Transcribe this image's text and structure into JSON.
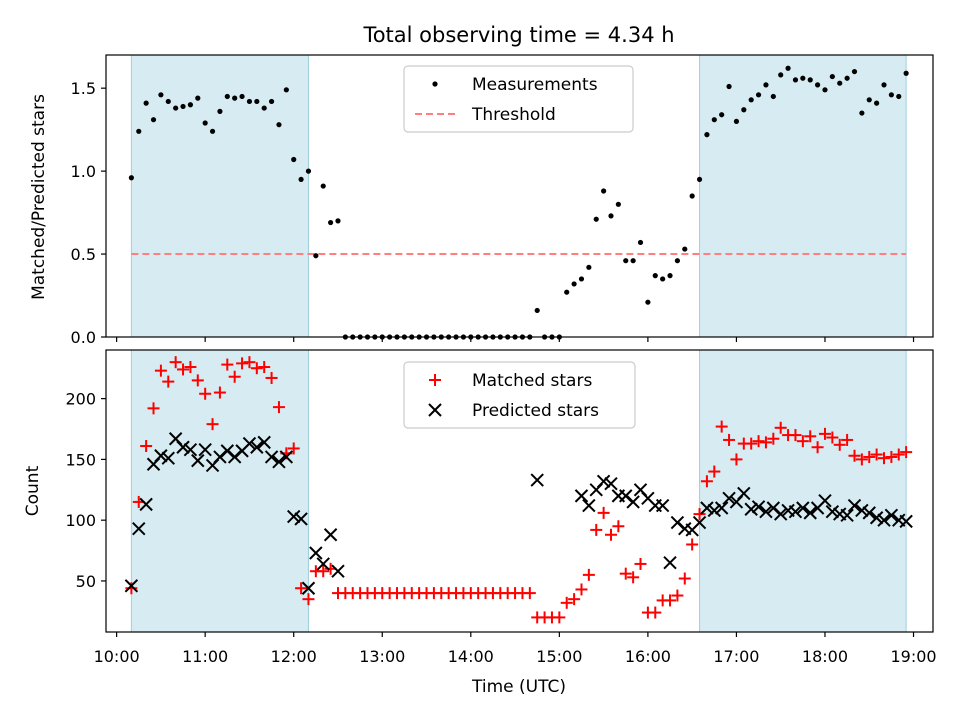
{
  "chart_data": [
    {
      "type": "scatter",
      "title": "Total observing time = 4.34 h",
      "xlabel": "",
      "ylabel": "Matched/Predicted stars",
      "xlim": [
        "10:00",
        "19:00"
      ],
      "ylim": [
        0,
        1.7
      ],
      "yticks": [
        "0.0",
        "0.5",
        "1.0",
        "1.5"
      ],
      "legend_position": "upper-center",
      "shaded_intervals": [
        [
          "10:10",
          "12:10"
        ],
        [
          "16:35",
          "18:55"
        ]
      ],
      "threshold": 0.5,
      "series": [
        {
          "name": "Measurements",
          "color": "#000000",
          "marker": "dot",
          "x": [
            "10:10",
            "10:15",
            "10:20",
            "10:25",
            "10:30",
            "10:35",
            "10:40",
            "10:45",
            "10:50",
            "10:55",
            "11:00",
            "11:05",
            "11:10",
            "11:15",
            "11:20",
            "11:25",
            "11:30",
            "11:35",
            "11:40",
            "11:45",
            "11:50",
            "11:55",
            "12:00",
            "12:05",
            "12:10",
            "12:15",
            "12:20",
            "12:25",
            "12:30",
            "12:35",
            "12:40",
            "12:45",
            "12:50",
            "12:55",
            "13:00",
            "13:05",
            "13:10",
            "13:15",
            "13:20",
            "13:25",
            "13:30",
            "13:35",
            "13:40",
            "13:45",
            "13:50",
            "13:55",
            "14:00",
            "14:05",
            "14:10",
            "14:15",
            "14:20",
            "14:25",
            "14:30",
            "14:35",
            "14:40",
            "14:45",
            "14:50",
            "14:55",
            "15:00",
            "15:05",
            "15:10",
            "15:15",
            "15:20",
            "15:25",
            "15:30",
            "15:35",
            "15:40",
            "15:45",
            "15:50",
            "15:55",
            "16:00",
            "16:05",
            "16:10",
            "16:15",
            "16:20",
            "16:25",
            "16:30",
            "16:35",
            "16:40",
            "16:45",
            "16:50",
            "16:55",
            "17:00",
            "17:05",
            "17:10",
            "17:15",
            "17:20",
            "17:25",
            "17:30",
            "17:35",
            "17:40",
            "17:45",
            "17:50",
            "17:55",
            "18:00",
            "18:05",
            "18:10",
            "18:15",
            "18:20",
            "18:25",
            "18:30",
            "18:35",
            "18:40",
            "18:45",
            "18:50",
            "18:55"
          ],
          "y": [
            0.96,
            1.24,
            1.41,
            1.31,
            1.46,
            1.42,
            1.38,
            1.39,
            1.4,
            1.44,
            1.29,
            1.24,
            1.36,
            1.45,
            1.44,
            1.45,
            1.42,
            1.42,
            1.38,
            1.42,
            1.28,
            1.49,
            1.07,
            0.95,
            1.0,
            0.49,
            0.91,
            0.69,
            0.7,
            0.0,
            0.0,
            0.0,
            0.0,
            0.0,
            0.0,
            0.0,
            0.0,
            0.0,
            0.0,
            0.0,
            0.0,
            0.0,
            0.0,
            0.0,
            0.0,
            0.0,
            0.0,
            0.0,
            0.0,
            0.0,
            0.0,
            0.0,
            0.0,
            0.0,
            0.0,
            0.16,
            0.0,
            0.0,
            0.0,
            0.27,
            0.32,
            0.35,
            0.42,
            0.71,
            0.88,
            0.73,
            0.8,
            0.46,
            0.46,
            0.57,
            0.21,
            0.37,
            0.35,
            0.37,
            0.46,
            0.53,
            0.85,
            0.95,
            1.22,
            1.31,
            1.34,
            1.51,
            1.3,
            1.37,
            1.43,
            1.46,
            1.52,
            1.45,
            1.58,
            1.62,
            1.55,
            1.56,
            1.55,
            1.52,
            1.49,
            1.57,
            1.53,
            1.56,
            1.6,
            1.35,
            1.43,
            1.41,
            1.52,
            1.46,
            1.45,
            1.59
          ]
        },
        {
          "name": "Threshold",
          "color": "#ff7f7f",
          "line": "dashed",
          "value": 0.5
        }
      ]
    },
    {
      "type": "scatter",
      "title": "",
      "xlabel": "Time (UTC)",
      "ylabel": "Count",
      "xlim": [
        "10:00",
        "19:00"
      ],
      "ylim": [
        8,
        240
      ],
      "xticks": [
        "10:00",
        "11:00",
        "12:00",
        "13:00",
        "14:00",
        "15:00",
        "16:00",
        "17:00",
        "18:00",
        "19:00"
      ],
      "yticks": [
        "50",
        "100",
        "150",
        "200"
      ],
      "legend_position": "upper-center",
      "shaded_intervals": [
        [
          "10:10",
          "12:10"
        ],
        [
          "16:35",
          "18:55"
        ]
      ],
      "series": [
        {
          "name": "Matched stars",
          "color": "#ff0000",
          "marker": "plus",
          "x": [
            "10:10",
            "10:15",
            "10:20",
            "10:25",
            "10:30",
            "10:35",
            "10:40",
            "10:45",
            "10:50",
            "10:55",
            "11:00",
            "11:05",
            "11:10",
            "11:15",
            "11:20",
            "11:25",
            "11:30",
            "11:35",
            "11:40",
            "11:45",
            "11:50",
            "11:55",
            "12:00",
            "12:05",
            "12:10",
            "12:15",
            "12:20",
            "12:25",
            "12:30",
            "12:35",
            "12:40",
            "12:45",
            "12:50",
            "12:55",
            "13:00",
            "13:05",
            "13:10",
            "13:15",
            "13:20",
            "13:25",
            "13:30",
            "13:35",
            "13:40",
            "13:45",
            "13:50",
            "13:55",
            "14:00",
            "14:05",
            "14:10",
            "14:15",
            "14:20",
            "14:25",
            "14:30",
            "14:35",
            "14:40",
            "14:45",
            "14:50",
            "14:55",
            "15:00",
            "15:05",
            "15:10",
            "15:15",
            "15:20",
            "15:25",
            "15:30",
            "15:35",
            "15:40",
            "15:45",
            "15:50",
            "15:55",
            "16:00",
            "16:05",
            "16:10",
            "16:15",
            "16:20",
            "16:25",
            "16:30",
            "16:35",
            "16:40",
            "16:45",
            "16:50",
            "16:55",
            "17:00",
            "17:05",
            "17:10",
            "17:15",
            "17:20",
            "17:25",
            "17:30",
            "17:35",
            "17:40",
            "17:45",
            "17:50",
            "17:55",
            "18:00",
            "18:05",
            "18:10",
            "18:15",
            "18:20",
            "18:25",
            "18:30",
            "18:35",
            "18:40",
            "18:45",
            "18:50",
            "18:55"
          ],
          "y": [
            44,
            115,
            161,
            192,
            223,
            214,
            230,
            224,
            226,
            215,
            204,
            179,
            205,
            228,
            218,
            229,
            230,
            225,
            226,
            217,
            193,
            155,
            159,
            44,
            35,
            58,
            58,
            60,
            40,
            40,
            40,
            40,
            40,
            40,
            40,
            40,
            40,
            40,
            40,
            40,
            40,
            40,
            40,
            40,
            40,
            40,
            40,
            40,
            40,
            40,
            40,
            40,
            40,
            40,
            40,
            20,
            20,
            20,
            20,
            32,
            35,
            43,
            55,
            92,
            106,
            88,
            95,
            56,
            53,
            64,
            24,
            24,
            34,
            34,
            38,
            52,
            80,
            105,
            132,
            140,
            177,
            166,
            150,
            163,
            163,
            165,
            164,
            167,
            176,
            170,
            170,
            165,
            169,
            160,
            171,
            168,
            162,
            166,
            153,
            150,
            152,
            154,
            151,
            152,
            154,
            156
          ]
        },
        {
          "name": "Predicted stars",
          "color": "#000000",
          "marker": "x",
          "x": [
            "10:10",
            "10:15",
            "10:20",
            "10:25",
            "10:30",
            "10:35",
            "10:40",
            "10:45",
            "10:50",
            "10:55",
            "11:00",
            "11:05",
            "11:10",
            "11:15",
            "11:20",
            "11:25",
            "11:30",
            "11:35",
            "11:40",
            "11:45",
            "11:50",
            "11:55",
            "12:00",
            "12:05",
            "12:10",
            "12:15",
            "12:20",
            "12:25",
            "12:30",
            "14:45",
            "15:15",
            "15:20",
            "15:25",
            "15:30",
            "15:35",
            "15:40",
            "15:45",
            "15:50",
            "15:55",
            "16:00",
            "16:05",
            "16:10",
            "16:15",
            "16:20",
            "16:25",
            "16:30",
            "16:35",
            "16:40",
            "16:45",
            "16:50",
            "16:55",
            "17:00",
            "17:05",
            "17:10",
            "17:15",
            "17:20",
            "17:25",
            "17:30",
            "17:35",
            "17:40",
            "17:45",
            "17:50",
            "17:55",
            "18:00",
            "18:05",
            "18:10",
            "18:15",
            "18:20",
            "18:25",
            "18:30",
            "18:35",
            "18:40",
            "18:45",
            "18:50",
            "18:55"
          ],
          "y": [
            46,
            93,
            113,
            146,
            153,
            151,
            167,
            160,
            158,
            149,
            158,
            145,
            152,
            157,
            152,
            157,
            163,
            160,
            164,
            152,
            148,
            152,
            103,
            101,
            44,
            73,
            64,
            88,
            58,
            133,
            120,
            112,
            125,
            132,
            130,
            120,
            120,
            115,
            125,
            118,
            112,
            112,
            65,
            98,
            93,
            92,
            98,
            110,
            108,
            110,
            118,
            115,
            122,
            109,
            111,
            107,
            110,
            105,
            108,
            107,
            110,
            106,
            110,
            116,
            107,
            105,
            104,
            112,
            108,
            106,
            102,
            100,
            104,
            100,
            99
          ]
        }
      ]
    }
  ]
}
